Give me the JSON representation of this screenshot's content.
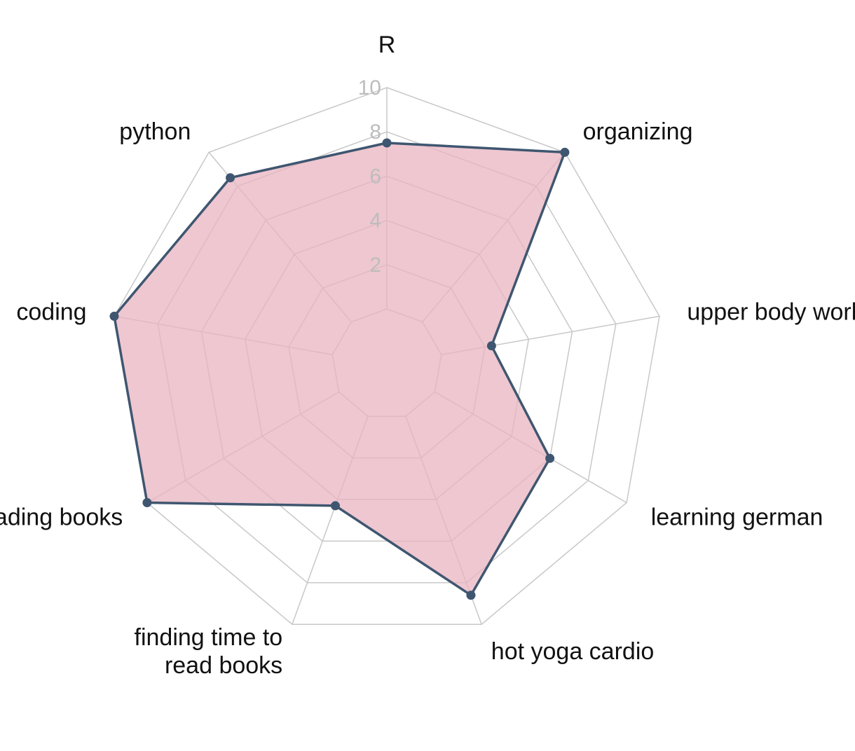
{
  "chart_data": {
    "type": "radar",
    "categories": [
      "R",
      "organizing",
      "upper body workouts",
      "learning german",
      "hot yoga cardio",
      "finding time to read books",
      "reading books",
      "coding",
      "python"
    ],
    "category_label_lines": [
      [
        "R"
      ],
      [
        "organizing"
      ],
      [
        "upper body workouts"
      ],
      [
        "learning german"
      ],
      [
        "hot yoga cardio"
      ],
      [
        "finding time to",
        "read books"
      ],
      [
        "reading books"
      ],
      [
        "coding"
      ],
      [
        "python"
      ]
    ],
    "series": [
      {
        "values": [
          7.5,
          10,
          2.3,
          6,
          8.6,
          4.3,
          10,
          10,
          8.5
        ]
      }
    ],
    "rlim": [
      0,
      10
    ],
    "ticks": [
      2,
      4,
      6,
      8,
      10
    ],
    "tick_labels": [
      "2",
      "4",
      "6",
      "8",
      "10"
    ],
    "grid": true,
    "colors": {
      "fill": "#e8b4c0",
      "line": "#3f5670",
      "grid": "#c8c8c8",
      "tick_text": "#bdbdbd"
    }
  }
}
